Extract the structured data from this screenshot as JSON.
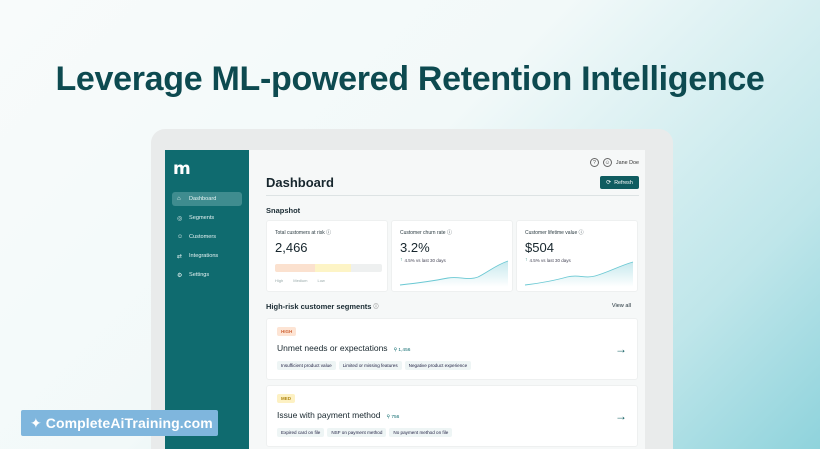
{
  "headline": "Leverage ML-powered Retention Intelligence",
  "app": {
    "logo": "m",
    "user_name": "Jane Doe",
    "help_icon": "help-icon",
    "avatar_icon": "user-icon"
  },
  "sidebar": {
    "items": [
      {
        "label": "Dashboard",
        "icon": "home-icon",
        "active": true
      },
      {
        "label": "Segments",
        "icon": "segments-icon",
        "active": false
      },
      {
        "label": "Customers",
        "icon": "customers-icon",
        "active": false
      },
      {
        "label": "Integrations",
        "icon": "integrations-icon",
        "active": false
      },
      {
        "label": "Settings",
        "icon": "settings-icon",
        "active": false
      }
    ]
  },
  "header": {
    "title": "Dashboard",
    "refresh_label": "Refresh"
  },
  "snapshot": {
    "title": "Snapshot",
    "cards": [
      {
        "label": "Total customers at risk",
        "value": "2,466",
        "legend": [
          "High",
          "Medium",
          "Low"
        ]
      },
      {
        "label": "Customer churn rate",
        "value": "3.2%",
        "delta": "4.5% vs last 30 days"
      },
      {
        "label": "Customer lifetime value",
        "value": "$504",
        "delta": "4.5% vs last 30 days"
      }
    ]
  },
  "segments": {
    "title": "High-risk customer segments",
    "view_all": "View all",
    "items": [
      {
        "badge": "HIGH",
        "title": "Unmet needs or expectations",
        "count": "1,456",
        "chips": [
          "Insufficient product value",
          "Limited or missing features",
          "Negative product experience"
        ]
      },
      {
        "badge": "MED",
        "title": "Issue with payment method",
        "count": "756",
        "chips": [
          "Expired card on file",
          "NSF on payment method",
          "No payment method on file"
        ]
      }
    ]
  },
  "brand": {
    "text": "CompleteAiTraining.com"
  },
  "colors": {
    "accent": "#0f6b6f",
    "sidebar": "#0f6b6f",
    "headline": "#0d4a50",
    "high": "#d0673a",
    "medium": "#b08612"
  }
}
